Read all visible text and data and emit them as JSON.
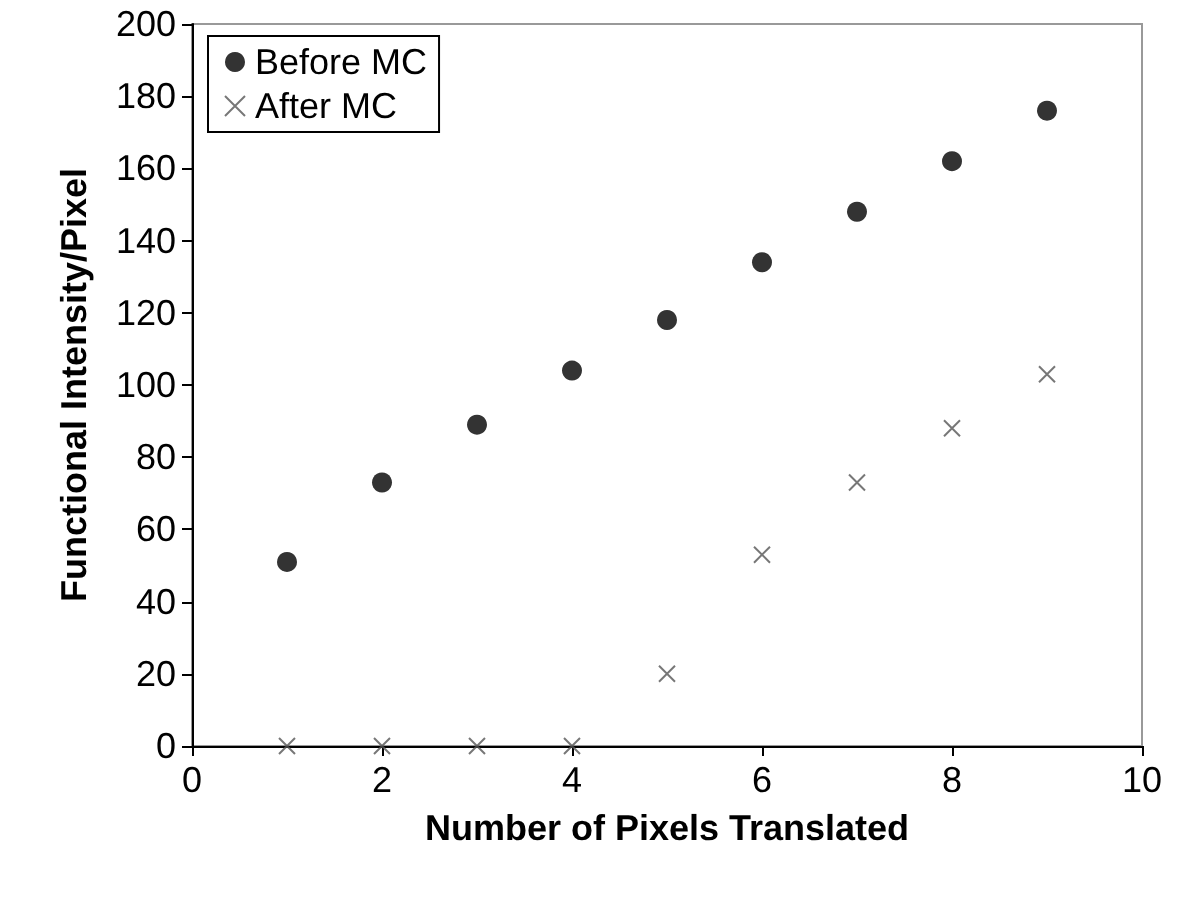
{
  "chart_data": {
    "type": "scatter",
    "xlabel": "Number of Pixels Translated",
    "ylabel": "Functional Intensity/Pixel",
    "x": [
      1,
      2,
      3,
      4,
      5,
      6,
      7,
      8,
      9
    ],
    "series": [
      {
        "name": "Before MC",
        "color": "#000000",
        "marker": "circle",
        "values": [
          51,
          73,
          89,
          104,
          118,
          134,
          148,
          162,
          176
        ]
      },
      {
        "name": "After MC",
        "color": "#555555",
        "marker": "cross",
        "values": [
          0,
          0,
          0,
          0,
          20,
          53,
          73,
          88,
          103
        ]
      }
    ],
    "xlim": [
      0,
      10
    ],
    "xticks": [
      0,
      2,
      4,
      6,
      8,
      10
    ],
    "ylim": [
      0,
      200
    ],
    "yticks": [
      0,
      20,
      40,
      60,
      80,
      100,
      120,
      140,
      160,
      180,
      200
    ],
    "grid": false,
    "legend": "top left"
  }
}
